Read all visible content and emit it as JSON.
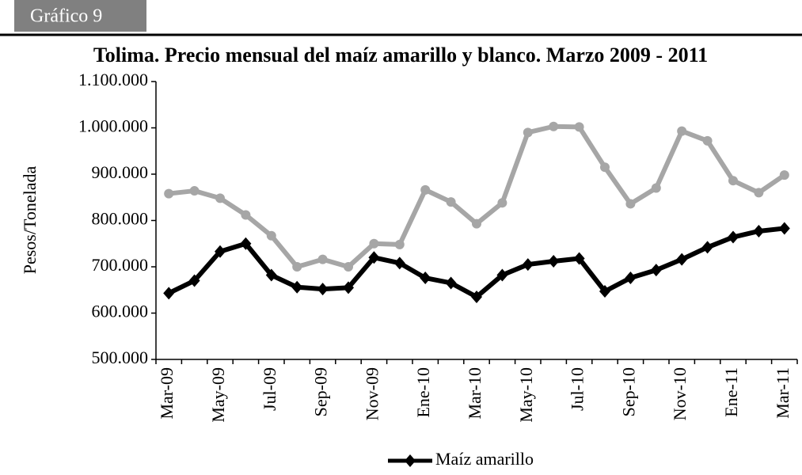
{
  "header": "Gráfico 9",
  "chart_data": {
    "type": "line",
    "title": "Tolima. Precio mensual del maíz amarillo y blanco. Marzo 2009 - 2011",
    "y_label": "Pesos/Tonelada",
    "categories": [
      "Mar-09",
      null,
      "May-09",
      null,
      "Jul-09",
      null,
      "Sep-09",
      null,
      "Nov-09",
      null,
      "Ene-10",
      null,
      "Mar-10",
      null,
      "May-10",
      null,
      "Jul-10",
      null,
      "Sep-10",
      null,
      "Nov-10",
      null,
      "Ene-11",
      null,
      "Mar-11"
    ],
    "series": [
      {
        "name": "Maíz amarillo",
        "color": "#000000",
        "marker": "diamond",
        "values": [
          643000,
          670000,
          733000,
          750000,
          682000,
          656000,
          652000,
          655000,
          720000,
          708000,
          676000,
          665000,
          635000,
          682000,
          705000,
          712000,
          718000,
          647000,
          676000,
          693000,
          716000,
          742000,
          764000,
          777000,
          783000
        ]
      },
      {
        "color": "#a6a6a6",
        "marker": "circle",
        "values": [
          858000,
          864000,
          848000,
          812000,
          767000,
          700000,
          716000,
          700000,
          750000,
          748000,
          866000,
          840000,
          793000,
          838000,
          990000,
          1003000,
          1002000,
          915000,
          836000,
          870000,
          993000,
          972000,
          886000,
          860000,
          898000
        ]
      }
    ],
    "ylim": [
      500000,
      1100000
    ],
    "yticks": [
      {
        "value": 500000,
        "label": "500.000"
      },
      {
        "value": 600000,
        "label": "600.000"
      },
      {
        "value": 700000,
        "label": "700.000"
      },
      {
        "value": 800000,
        "label": "800.000"
      },
      {
        "value": 900000,
        "label": "900.000"
      },
      {
        "value": 1000000,
        "label": "1.000.000"
      },
      {
        "value": 1100000,
        "label": "1.100.000"
      }
    ],
    "legend": "bottom"
  }
}
